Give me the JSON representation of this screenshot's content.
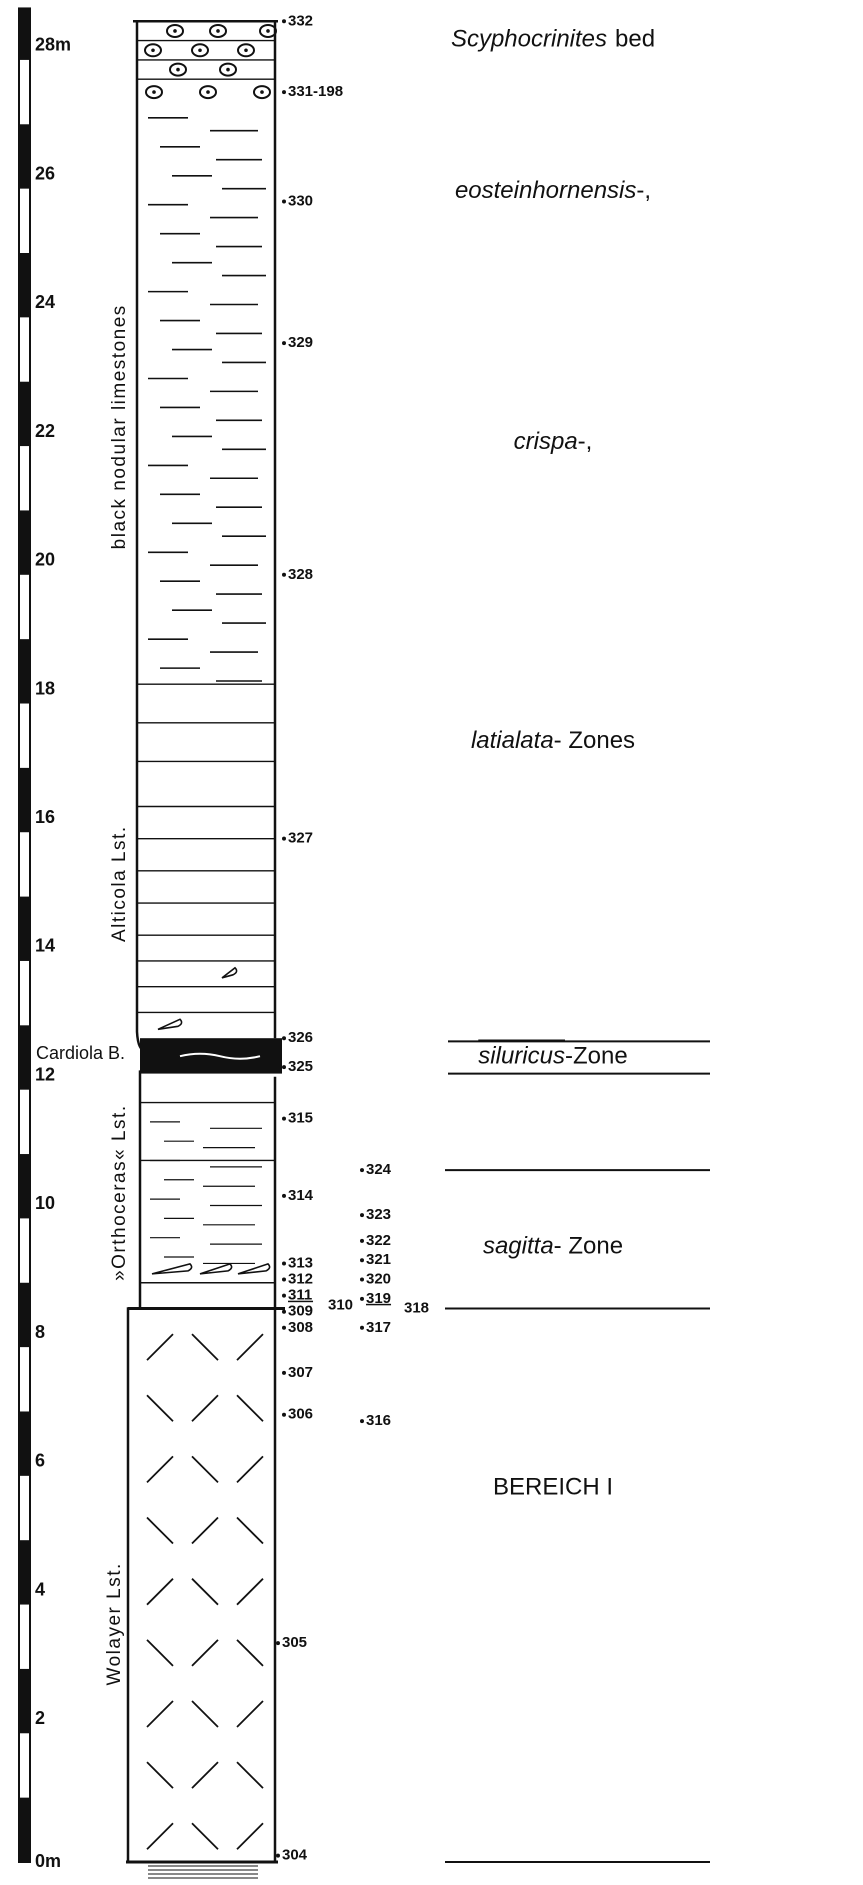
{
  "scale": {
    "labels": [
      "0m",
      "2",
      "4",
      "6",
      "8",
      "10",
      "12",
      "14",
      "16",
      "18",
      "20",
      "22",
      "24",
      "26",
      "28m"
    ]
  },
  "column_labels": [
    "black nodular limestones",
    "Alticola Lst.",
    "Cardiola B.",
    "»Orthoceras« Lst.",
    "Wolayer Lst."
  ],
  "samples_inner": [
    "332",
    "331-198",
    "330",
    "329",
    "328",
    "327",
    "326",
    "325",
    "315",
    "314",
    "313",
    "312",
    "311",
    "309",
    "310",
    "308",
    "307",
    "306",
    "305",
    "304"
  ],
  "samples_outer": [
    "324",
    "323",
    "322",
    "321",
    "320",
    "319",
    "318",
    "317",
    "316"
  ],
  "zones": [
    {
      "italic": "Scyphocrinites",
      "text": "bed"
    },
    {
      "italic": "eosteinhornensis",
      "text": "-,"
    },
    {
      "italic": "crispa",
      "text": "-,"
    },
    {
      "italic": "latialata",
      "text": "- Zones"
    },
    {
      "italic": "siluricus",
      "text": "-Zone"
    },
    {
      "italic": "sagitta",
      "text": "- Zone"
    },
    {
      "text": "BEREICH I"
    }
  ]
}
